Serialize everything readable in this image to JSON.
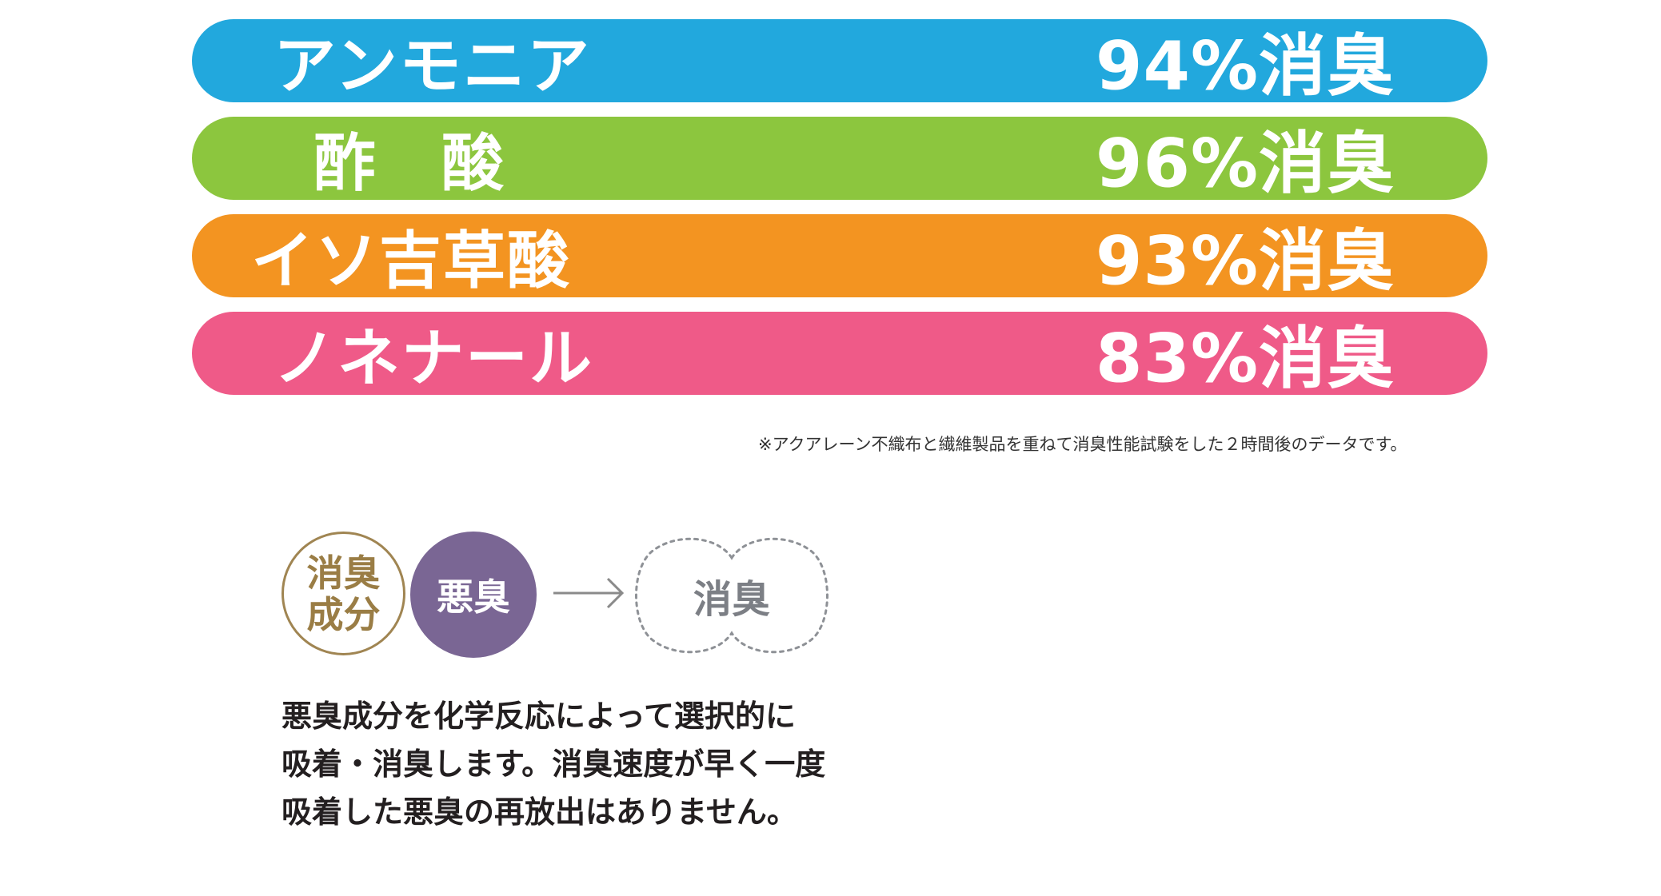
{
  "bars": [
    {
      "name": "アンモニア",
      "value": "94%消臭",
      "color": "#22a8dd"
    },
    {
      "name": "酢　酸",
      "value": "96%消臭",
      "color": "#8cc63e"
    },
    {
      "name": "イソ吉草酸",
      "value": "93%消臭",
      "color": "#f39421"
    },
    {
      "name": "ノネナール",
      "value": "83%消臭",
      "color": "#ef5a88"
    }
  ],
  "footnote": "※アクアレーン不織布と繊維製品を重ねて消臭性能試験をした２時間後のデータです。",
  "diagram": {
    "agent_line1": "消臭",
    "agent_line2": "成分",
    "odor": "悪臭",
    "result": "消臭"
  },
  "description": {
    "line1": "悪臭成分を化学反応によって選択的に",
    "line2": "吸着・消臭します。消臭速度が早く一度",
    "line3": "吸着した悪臭の再放出はありません。"
  }
}
